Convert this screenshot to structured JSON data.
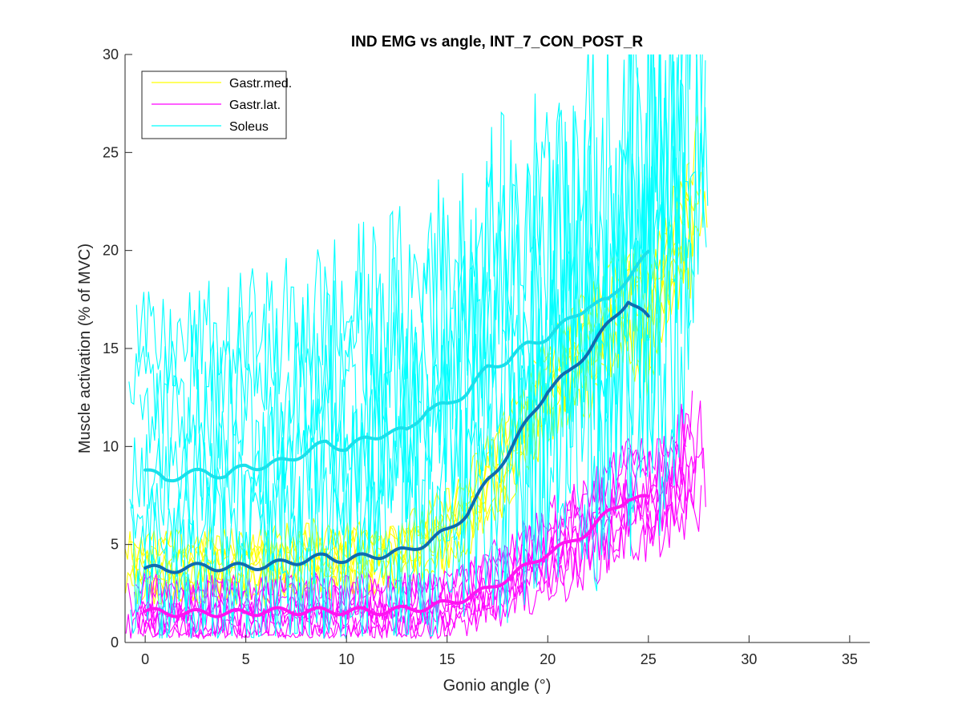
{
  "chart_data": {
    "type": "line",
    "title": "IND EMG vs angle, INT_7_CON_POST_R",
    "xlabel": "Gonio angle (°)",
    "ylabel": "Muscle activation (% of MVC)",
    "xlim": [
      -1,
      36
    ],
    "ylim": [
      0,
      30
    ],
    "x_ticks": [
      0,
      5,
      10,
      15,
      20,
      25,
      30,
      35
    ],
    "y_ticks": [
      0,
      5,
      10,
      15,
      20,
      25,
      30
    ],
    "grid": false,
    "legend_position": "top-left",
    "legend": [
      {
        "name": "Gastr.med.",
        "color": "#FFFF00"
      },
      {
        "name": "Gastr.lat.",
        "color": "#FF00FF"
      },
      {
        "name": "Soleus",
        "color": "#00FFFF"
      }
    ],
    "colors": {
      "gastr_med": "#FFFF00",
      "gastr_lat": "#FF00FF",
      "soleus": "#00FFFF",
      "soleus_mean": "#1AE0EA",
      "gastr_med_mean": "#0F6CB0",
      "gastr_lat_mean": "#FF14F0"
    },
    "mean_series": [
      {
        "muscle": "Soleus",
        "color": "#1AE0EA",
        "x": [
          0,
          1,
          2,
          3,
          4,
          5,
          6,
          7,
          8,
          9,
          10,
          11,
          12,
          13,
          14,
          15,
          16,
          17,
          18,
          19,
          20,
          21,
          22,
          23,
          24,
          25
        ],
        "y": [
          8.8,
          8.3,
          8.6,
          8.7,
          8.5,
          9.0,
          9.0,
          9.3,
          9.7,
          10.2,
          9.9,
          10.4,
          10.7,
          10.8,
          11.9,
          12.1,
          12.8,
          14.0,
          14.4,
          15.2,
          15.6,
          16.4,
          17.2,
          17.4,
          18.7,
          19.8
        ]
      },
      {
        "muscle": "Gastr.med.",
        "color": "#0F6CB0",
        "x": [
          0,
          1,
          2,
          3,
          4,
          5,
          6,
          7,
          8,
          9,
          10,
          11,
          12,
          13,
          14,
          15,
          16,
          17,
          18,
          19,
          20,
          21,
          22,
          23,
          24,
          25
        ],
        "y": [
          3.8,
          3.7,
          3.8,
          3.9,
          3.8,
          3.9,
          3.9,
          4.1,
          4.2,
          4.4,
          4.2,
          4.4,
          4.5,
          4.7,
          5.1,
          5.7,
          6.6,
          8.2,
          9.6,
          11.3,
          12.9,
          13.7,
          14.9,
          16.2,
          17.5,
          16.5
        ]
      },
      {
        "muscle": "Gastr.lat.",
        "color": "#FF14F0",
        "x": [
          0,
          1,
          2,
          3,
          4,
          5,
          6,
          7,
          8,
          9,
          10,
          11,
          12,
          13,
          14,
          15,
          16,
          17,
          18,
          19,
          20,
          21,
          22,
          23,
          24,
          25
        ],
        "y": [
          1.6,
          1.5,
          1.5,
          1.5,
          1.5,
          1.5,
          1.6,
          1.6,
          1.6,
          1.6,
          1.6,
          1.6,
          1.6,
          1.7,
          1.8,
          2.0,
          2.3,
          2.7,
          3.3,
          3.9,
          4.6,
          5.0,
          5.7,
          6.6,
          7.4,
          7.3
        ]
      }
    ],
    "trial_groups": [
      {
        "muscle": "Gastr.med.",
        "color": "#FFFF00",
        "count": 8,
        "x_range": [
          -1,
          28
        ],
        "baseline": [
          0.3,
          1.8
        ],
        "rise_start": 13.5,
        "peak_at_28": [
          20,
          30
        ]
      },
      {
        "muscle": "Gastr.lat.",
        "color": "#FF00FF",
        "count": 8,
        "x_range": [
          -1,
          28
        ],
        "baseline": [
          0.8,
          3.0
        ],
        "rise_start": 15,
        "peak_at_28": [
          6,
          14
        ]
      },
      {
        "muscle": "Soleus",
        "color": "#00FFFF",
        "count": 7,
        "x_range": [
          -1,
          28
        ],
        "baseline": [
          1.5,
          20
        ],
        "rise_start": 0,
        "peak_at_28": [
          16,
          29
        ]
      }
    ]
  }
}
